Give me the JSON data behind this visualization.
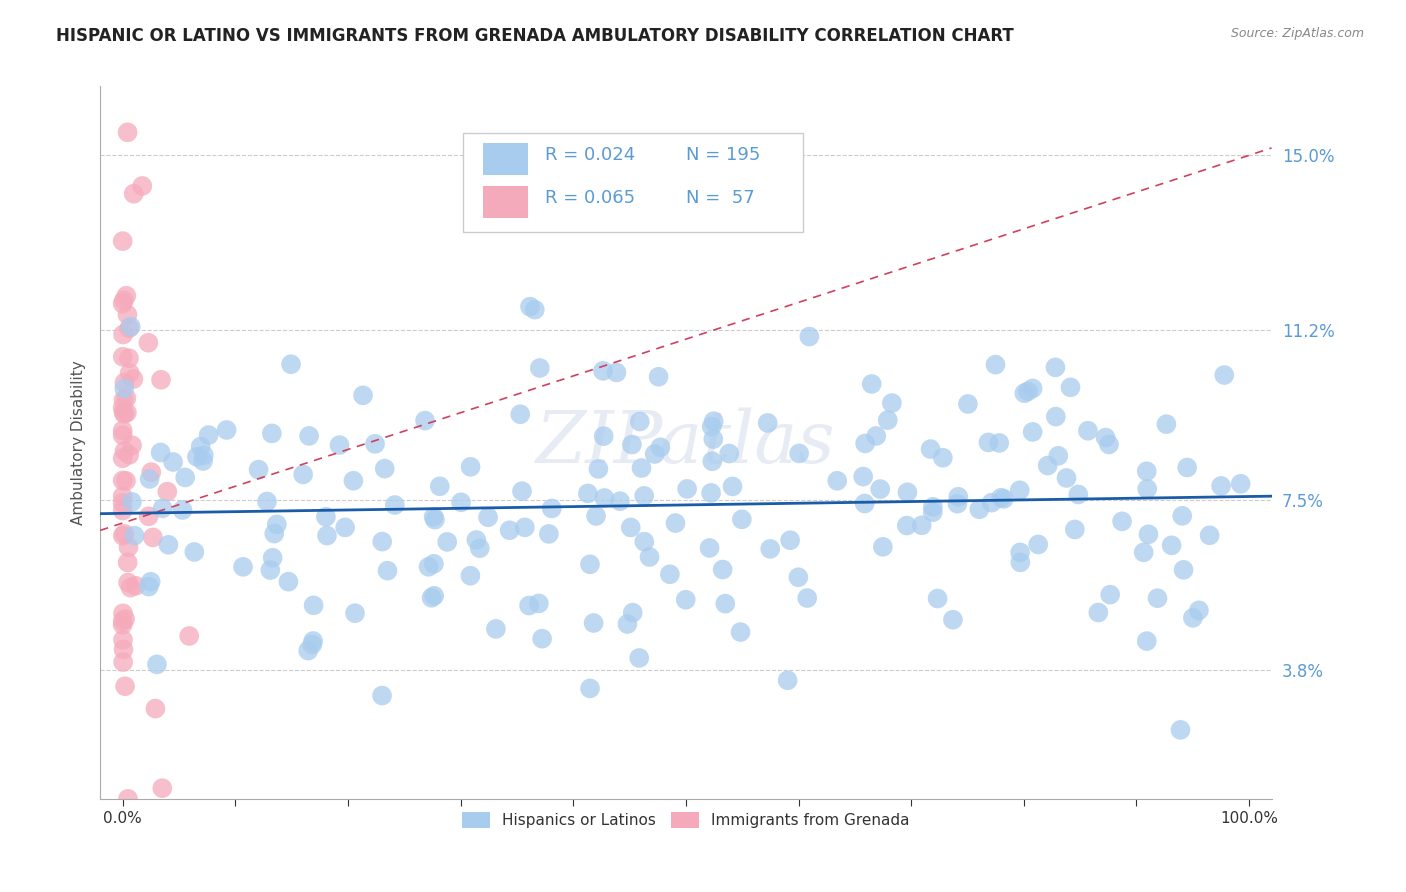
{
  "title": "HISPANIC OR LATINO VS IMMIGRANTS FROM GRENADA AMBULATORY DISABILITY CORRELATION CHART",
  "source_text": "Source: ZipAtlas.com",
  "ylabel": "Ambulatory Disability",
  "xlim": [
    -0.02,
    1.02
  ],
  "ylim": [
    0.01,
    0.165
  ],
  "yticks": [
    0.038,
    0.075,
    0.112,
    0.15
  ],
  "ytick_labels": [
    "3.8%",
    "7.5%",
    "11.2%",
    "15.0%"
  ],
  "xticks": [
    0.0,
    0.1,
    0.2,
    0.3,
    0.4,
    0.5,
    0.6,
    0.7,
    0.8,
    0.9,
    1.0
  ],
  "xtick_labels_show": [
    "0.0%",
    "",
    "",
    "",
    "",
    "",
    "",
    "",
    "",
    "",
    "100.0%"
  ],
  "blue_R": 0.024,
  "blue_N": 195,
  "pink_R": 0.065,
  "pink_N": 57,
  "blue_color": "#a8ccee",
  "pink_color": "#f5aabb",
  "blue_line_color": "#1a5ca8",
  "pink_line_color": "#d04060",
  "legend_label_blue": "Hispanics or Latinos",
  "legend_label_pink": "Immigrants from Grenada",
  "background_color": "#ffffff",
  "title_fontsize": 12,
  "axis_label_fontsize": 11,
  "tick_fontsize": 11,
  "legend_fontsize": 11,
  "ytick_color": "#5b9bd5",
  "xtick_color": "#333333"
}
